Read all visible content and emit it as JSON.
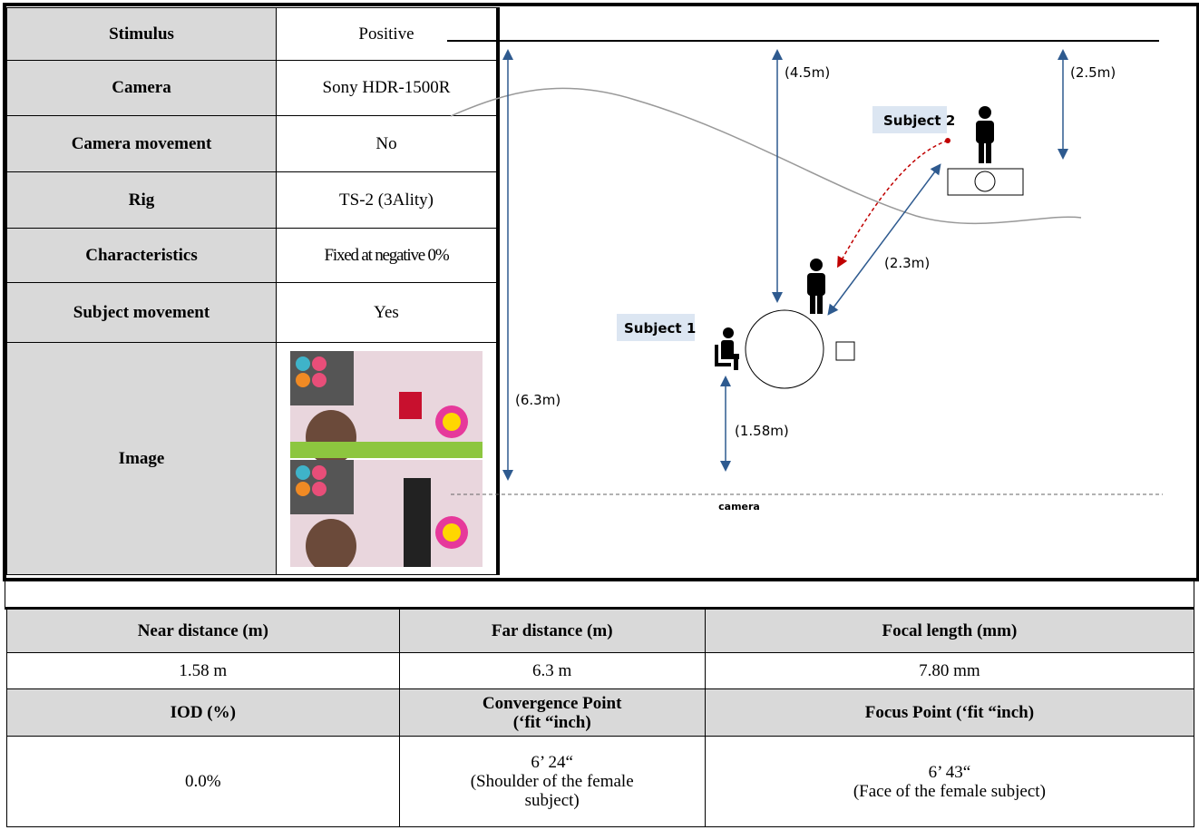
{
  "spec_table": {
    "rows": [
      {
        "label": "Stimulus",
        "value": "Positive"
      },
      {
        "label": "Camera",
        "value": "Sony HDR-1500R"
      },
      {
        "label": "Camera movement",
        "value": "No"
      },
      {
        "label": "Rig",
        "value": "TS-2 (3Ality)"
      },
      {
        "label": "Characteristics",
        "value": "Fixed at negative 0%"
      },
      {
        "label": "Subject movement",
        "value": "Yes"
      },
      {
        "label": "Image"
      }
    ]
  },
  "diagram": {
    "labels": {
      "d45": "(4.5m)",
      "d25": "(2.5m)",
      "subject2": "Subject 2",
      "d23": "(2.3m)",
      "subject1": "Subject 1",
      "d63": "(6.3m)",
      "d158": "(1.58m)",
      "camera": "camera"
    }
  },
  "bottom_table": {
    "rows": [
      [
        "Near distance (m)",
        "Far distance (m)",
        "Focal length (mm)"
      ],
      [
        "1.58 m",
        "6.3 m",
        "7.80 mm"
      ],
      [
        "IOD (%)",
        [
          "Convergence Point",
          "(‘fit “inch)"
        ],
        "Focus Point (‘fit “inch)"
      ],
      [
        "0.0%",
        [
          "6’ 24“",
          "(Shoulder of the female",
          "subject)"
        ],
        [
          "6’ 43“",
          "(Face of the female subject)"
        ]
      ]
    ]
  }
}
